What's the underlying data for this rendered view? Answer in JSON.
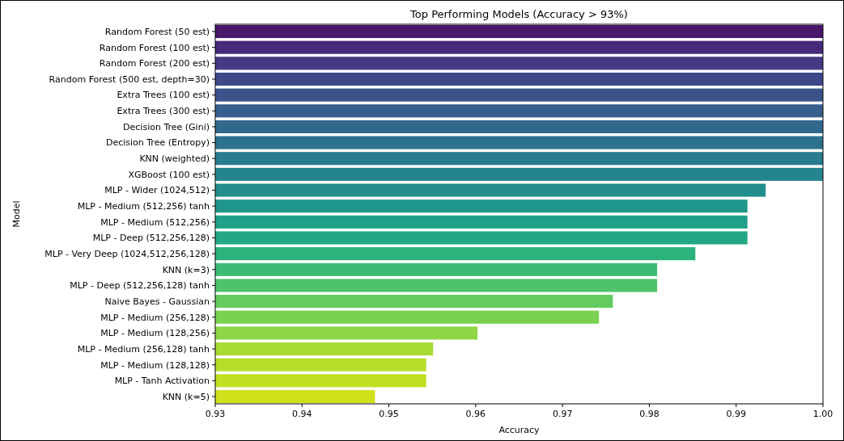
{
  "chart_data": {
    "type": "bar",
    "orientation": "horizontal",
    "title": "Top Performing Models (Accuracy > 93%)",
    "xlabel": "Accuracy",
    "ylabel": "Model",
    "categories": [
      "Random Forest (50 est)",
      "Random Forest (100 est)",
      "Random Forest (200 est)",
      "Random Forest (500 est, depth=30)",
      "Extra Trees (100 est)",
      "Extra Trees (300 est)",
      "Decision Tree (Gini)",
      "Decision Tree (Entropy)",
      "KNN (weighted)",
      "XGBoost (100 est)",
      "MLP - Wider (1024,512)",
      "MLP - Medium (512,256) tanh",
      "MLP - Medium (512,256)",
      "MLP - Deep (512,256,128)",
      "MLP - Very Deep (1024,512,256,128)",
      "KNN (k=3)",
      "MLP - Deep (512,256,128) tanh",
      "Naive Bayes - Gaussian",
      "MLP - Medium (256,128)",
      "MLP - Medium (128,256)",
      "MLP - Medium (256,128) tanh",
      "MLP - Medium (128,128)",
      "MLP - Tanh Activation",
      "KNN (k=5)"
    ],
    "values": [
      1.0,
      1.0,
      1.0,
      1.0,
      1.0,
      1.0,
      1.0,
      1.0,
      1.0,
      1.0,
      0.9934,
      0.9913,
      0.9913,
      0.9913,
      0.9853,
      0.9809,
      0.9809,
      0.9758,
      0.9742,
      0.9602,
      0.9551,
      0.9543,
      0.9543,
      0.9484
    ],
    "colors": [
      "#48186a",
      "#472a7a",
      "#443a83",
      "#3f4889",
      "#3b528b",
      "#355f8d",
      "#31688e",
      "#2c728e",
      "#297b8e",
      "#25858e",
      "#228d8d",
      "#1f968b",
      "#1fa088",
      "#22a884",
      "#2db27d",
      "#3bbb75",
      "#4ec36b",
      "#63cb5f",
      "#7ad151",
      "#8ed645",
      "#a8db34",
      "#b5de2b",
      "#c2df23",
      "#d0e11c"
    ],
    "xlim": [
      0.93,
      1.0
    ],
    "xticks": [
      0.93,
      0.94,
      0.95,
      0.96,
      0.97,
      0.98,
      0.99,
      {
        "value": 1.0,
        "label": "1.00"
      }
    ],
    "grid": false
  }
}
